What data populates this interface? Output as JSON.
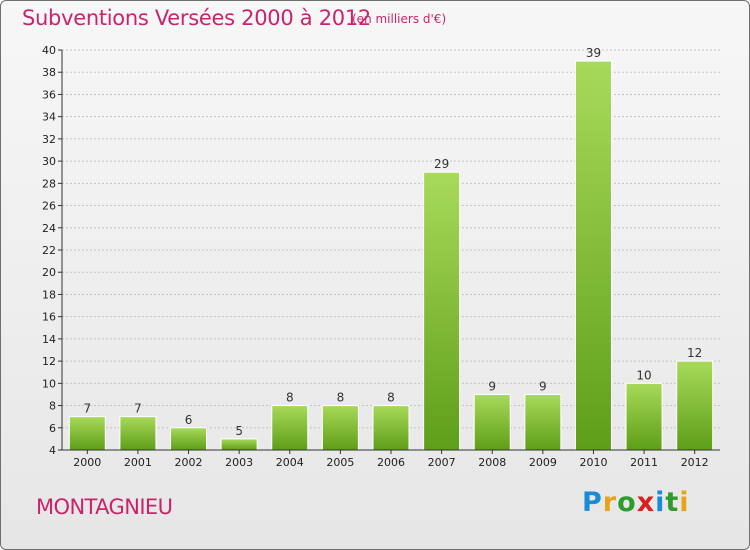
{
  "header": {
    "title": "Subventions Versées 2000 à 2012",
    "unit": "(en milliers d'€)"
  },
  "footer": {
    "commune": "MONTAGNIEU",
    "logo_text": "Proxiti",
    "logo_letters": [
      {
        "ch": "P",
        "color": "#1a8bd6"
      },
      {
        "ch": "r",
        "color": "#e8a31a"
      },
      {
        "ch": "o",
        "color": "#2d9b2d"
      },
      {
        "ch": "x",
        "color": "#d81f1f"
      },
      {
        "ch": "i",
        "color": "#1a8bd6"
      },
      {
        "ch": "t",
        "color": "#2d9b2d"
      },
      {
        "ch": "i",
        "color": "#e8a31a"
      }
    ]
  },
  "colors": {
    "accent": "#c8246b",
    "bar_light": "#a4d655",
    "bar_dark": "#5e9e18",
    "grid": "#bbbbbb"
  },
  "chart_data": {
    "type": "bar",
    "title": "Subventions Versées 2000 à 2012",
    "subtitle": "(en milliers d'€)",
    "categories": [
      "2000",
      "2001",
      "2002",
      "2003",
      "2004",
      "2005",
      "2006",
      "2007",
      "2008",
      "2009",
      "2010",
      "2011",
      "2012"
    ],
    "values": [
      7,
      7,
      6,
      5,
      8,
      8,
      8,
      29,
      9,
      9,
      39,
      10,
      12
    ],
    "value_labels": [
      "7",
      "7",
      "6",
      "5",
      "8",
      "8",
      "8",
      "29",
      "9",
      "9",
      "39",
      "10",
      "12"
    ],
    "ylim": [
      4,
      40
    ],
    "yticks": [
      "4",
      "6",
      "8",
      "10",
      "12",
      "14",
      "16",
      "18",
      "20",
      "22",
      "24",
      "26",
      "28",
      "30",
      "32",
      "34",
      "36",
      "38",
      "40"
    ],
    "grid": true,
    "xlabel": "",
    "ylabel": ""
  }
}
